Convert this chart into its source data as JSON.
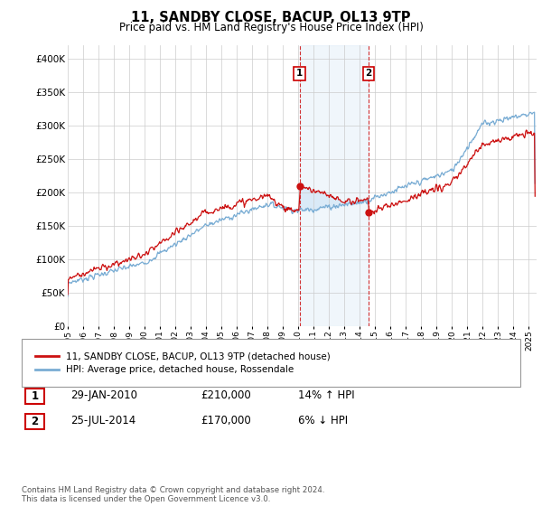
{
  "title": "11, SANDBY CLOSE, BACUP, OL13 9TP",
  "subtitle": "Price paid vs. HM Land Registry's House Price Index (HPI)",
  "ylabel_ticks": [
    "£0",
    "£50K",
    "£100K",
    "£150K",
    "£200K",
    "£250K",
    "£300K",
    "£350K",
    "£400K"
  ],
  "ytick_values": [
    0,
    50000,
    100000,
    150000,
    200000,
    250000,
    300000,
    350000,
    400000
  ],
  "ylim": [
    0,
    420000
  ],
  "xlim_start": 1995.0,
  "xlim_end": 2025.5,
  "marker1_x": 2010.08,
  "marker1_price": 210000,
  "marker2_x": 2014.56,
  "marker2_price": 170000,
  "hpi_color": "#7aadd4",
  "price_color": "#cc1111",
  "shading_color": "#daeaf7",
  "legend_label1": "11, SANDBY CLOSE, BACUP, OL13 9TP (detached house)",
  "legend_label2": "HPI: Average price, detached house, Rossendale",
  "footer": "Contains HM Land Registry data © Crown copyright and database right 2024.\nThis data is licensed under the Open Government Licence v3.0.",
  "table_rows": [
    [
      "1",
      "29-JAN-2010",
      "£210,000",
      "14% ↑ HPI"
    ],
    [
      "2",
      "25-JUL-2014",
      "£170,000",
      "6% ↓ HPI"
    ]
  ],
  "xtick_years": [
    1995,
    1996,
    1997,
    1998,
    1999,
    2000,
    2001,
    2002,
    2003,
    2004,
    2005,
    2006,
    2007,
    2008,
    2009,
    2010,
    2011,
    2012,
    2013,
    2014,
    2015,
    2016,
    2017,
    2018,
    2019,
    2020,
    2021,
    2022,
    2023,
    2024,
    2025
  ],
  "bg_color": "#ffffff",
  "grid_color": "#cccccc"
}
